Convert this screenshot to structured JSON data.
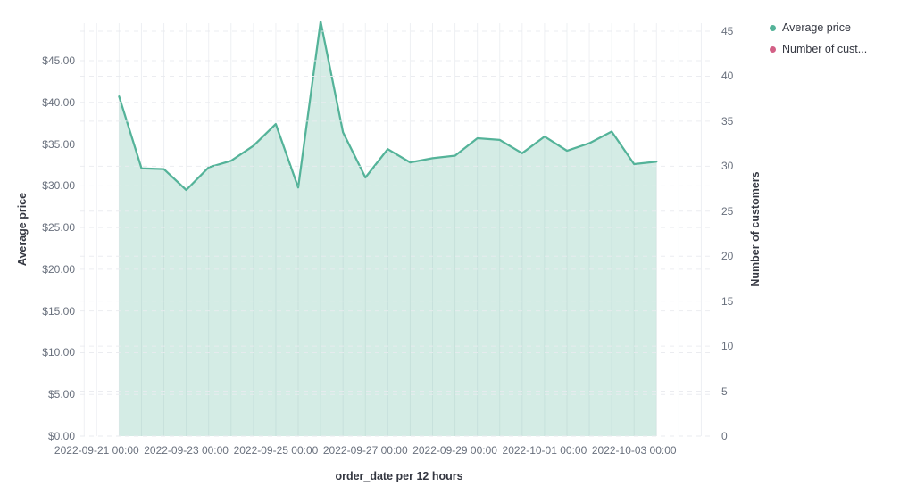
{
  "legend": {
    "items": [
      {
        "label": "Average price",
        "color": "#54B399"
      },
      {
        "label": "Number of cust...",
        "color": "#D36086"
      }
    ]
  },
  "axes": {
    "left": {
      "title": "Average price",
      "tick_labels": [
        "$0.00",
        "$5.00",
        "$10.00",
        "$15.00",
        "$20.00",
        "$25.00",
        "$30.00",
        "$35.00",
        "$40.00",
        "$45.00"
      ],
      "tick_values": [
        0,
        5,
        10,
        15,
        20,
        25,
        30,
        35,
        40,
        45
      ]
    },
    "right": {
      "title": "Number of customers",
      "tick_labels": [
        "0",
        "5",
        "10",
        "15",
        "20",
        "25",
        "30",
        "35",
        "40",
        "45"
      ],
      "tick_values": [
        0,
        5,
        10,
        15,
        20,
        25,
        30,
        35,
        40,
        45
      ]
    },
    "x": {
      "title": "order_date per 12 hours",
      "tick_labels": [
        "2022-09-21 00:00",
        "2022-09-23 00:00",
        "2022-09-25 00:00",
        "2022-09-27 00:00",
        "2022-09-29 00:00",
        "2022-10-01 00:00",
        "2022-10-03 00:00"
      ],
      "tick_bucket_indices": [
        0,
        4,
        8,
        12,
        16,
        20,
        24
      ]
    }
  },
  "chart_data": {
    "type": "area",
    "title": "",
    "xlabel": "order_date per 12 hours",
    "ylabel": "Average price",
    "ylabel_right": "Number of customers",
    "ylim_left": [
      0,
      50
    ],
    "ylim_right": [
      0,
      46.4
    ],
    "grid": true,
    "legend_position": "top-right",
    "x": [
      "2022-09-21 12:00",
      "2022-09-22 00:00",
      "2022-09-22 12:00",
      "2022-09-23 00:00",
      "2022-09-23 12:00",
      "2022-09-24 00:00",
      "2022-09-24 12:00",
      "2022-09-25 00:00",
      "2022-09-25 12:00",
      "2022-09-26 00:00",
      "2022-09-26 12:00",
      "2022-09-27 00:00",
      "2022-09-27 12:00",
      "2022-09-28 00:00",
      "2022-09-28 12:00",
      "2022-09-29 00:00",
      "2022-09-29 12:00",
      "2022-09-30 00:00",
      "2022-09-30 12:00",
      "2022-10-01 00:00",
      "2022-10-01 12:00",
      "2022-10-02 00:00",
      "2022-10-02 12:00",
      "2022-10-03 00:00",
      "2022-10-03 12:00"
    ],
    "series": [
      {
        "name": "Average price",
        "axis": "left",
        "color": "#54B399",
        "fill_opacity": 0.25,
        "values": [
          40.7,
          32.1,
          32.0,
          29.5,
          32.2,
          33.0,
          34.8,
          37.4,
          29.8,
          49.7,
          36.4,
          31.0,
          34.4,
          32.8,
          33.3,
          33.6,
          35.7,
          35.5,
          33.9,
          35.9,
          34.2,
          35.1,
          36.5,
          32.6,
          32.9
        ]
      },
      {
        "name": "Number of customers",
        "axis": "right",
        "color": "#D36086",
        "visible_in_plot": false,
        "values": []
      }
    ]
  }
}
